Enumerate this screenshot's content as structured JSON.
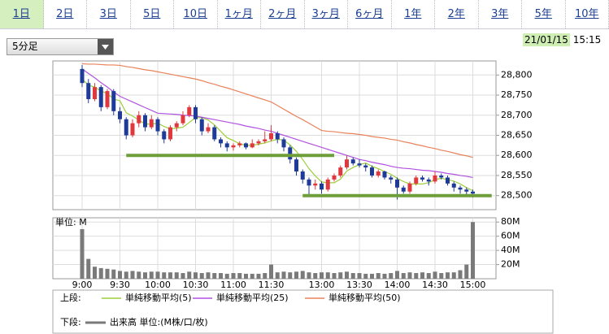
{
  "tabs": [
    "1日",
    "2日",
    "3日",
    "5日",
    "10日",
    "1ヶ月",
    "2ヶ月",
    "3ヶ月",
    "6ヶ月",
    "1年",
    "2年",
    "3年",
    "5年",
    "10年"
  ],
  "selected_tab": 0,
  "interval_select": "5分足",
  "date": "21/01/15",
  "time": "15:15",
  "legend": {
    "upper_label": "上段:",
    "lower_label": "下段:"
  },
  "chart_data": [
    {
      "type": "candlestick",
      "up_color": "#e0383e",
      "down_color": "#1f3b9a",
      "categories": [
        "9:00",
        null,
        null,
        null,
        null,
        null,
        "9:30",
        null,
        null,
        null,
        null,
        null,
        "10:00",
        null,
        null,
        null,
        null,
        null,
        "10:30",
        null,
        null,
        null,
        null,
        null,
        "11:00",
        null,
        null,
        null,
        null,
        null,
        "11:30",
        null,
        null,
        null,
        null,
        null,
        null,
        null,
        "13:00",
        null,
        null,
        null,
        null,
        null,
        "13:30",
        null,
        null,
        null,
        null,
        null,
        "14:00",
        null,
        null,
        null,
        null,
        null,
        "14:30",
        null,
        null,
        null,
        null,
        null,
        "15:00"
      ],
      "candles": [
        [
          28815,
          28825,
          28770,
          28780
        ],
        [
          28780,
          28790,
          28730,
          28740
        ],
        [
          28740,
          28780,
          28735,
          28770
        ],
        [
          28770,
          28775,
          28710,
          28720
        ],
        [
          28720,
          28765,
          28715,
          28760
        ],
        [
          28760,
          28765,
          28700,
          28710
        ],
        [
          28710,
          28720,
          28680,
          28690
        ],
        [
          28690,
          28695,
          28640,
          28650
        ],
        [
          28650,
          28690,
          28645,
          28680
        ],
        [
          28680,
          28710,
          28670,
          28700
        ],
        [
          28700,
          28705,
          28660,
          28670
        ],
        [
          28670,
          28700,
          28665,
          28690
        ],
        [
          28690,
          28695,
          28650,
          28660
        ],
        [
          28660,
          28665,
          28630,
          28640
        ],
        [
          28640,
          28675,
          28635,
          28670
        ],
        [
          28670,
          28685,
          28660,
          28680
        ],
        [
          28680,
          28710,
          28675,
          28700
        ],
        [
          28700,
          28725,
          28695,
          28720
        ],
        [
          28720,
          28725,
          28680,
          28690
        ],
        [
          28690,
          28695,
          28650,
          28660
        ],
        [
          28660,
          28680,
          28655,
          28670
        ],
        [
          28670,
          28675,
          28635,
          28640
        ],
        [
          28640,
          28645,
          28620,
          28630
        ],
        [
          28630,
          28635,
          28610,
          28620
        ],
        [
          28620,
          28630,
          28612,
          28625
        ],
        [
          28625,
          28635,
          28620,
          28630
        ],
        [
          28630,
          28632,
          28615,
          28620
        ],
        [
          28620,
          28640,
          28618,
          28630
        ],
        [
          28630,
          28640,
          28625,
          28635
        ],
        [
          28635,
          28660,
          28630,
          28640
        ],
        [
          28640,
          28675,
          28635,
          28655
        ],
        [
          28655,
          28660,
          28630,
          28640
        ],
        [
          28640,
          28645,
          28610,
          28620
        ],
        [
          28620,
          28625,
          28580,
          28590
        ],
        [
          28590,
          28595,
          28550,
          28560
        ],
        [
          28560,
          28565,
          28530,
          28540
        ],
        [
          28540,
          28545,
          28500,
          28525
        ],
        [
          28525,
          28540,
          28515,
          28530
        ],
        [
          28530,
          28535,
          28505,
          28515
        ],
        [
          28515,
          28545,
          28510,
          28540
        ],
        [
          28540,
          28555,
          28535,
          28550
        ],
        [
          28550,
          28575,
          28545,
          28570
        ],
        [
          28570,
          28600,
          28565,
          28590
        ],
        [
          28590,
          28595,
          28575,
          28580
        ],
        [
          28580,
          28590,
          28570,
          28575
        ],
        [
          28575,
          28580,
          28560,
          28570
        ],
        [
          28570,
          28575,
          28545,
          28550
        ],
        [
          28550,
          28565,
          28545,
          28560
        ],
        [
          28560,
          28562,
          28540,
          28545
        ],
        [
          28545,
          28550,
          28530,
          28540
        ],
        [
          28540,
          28545,
          28490,
          28520
        ],
        [
          28520,
          28525,
          28505,
          28510
        ],
        [
          28510,
          28535,
          28505,
          28530
        ],
        [
          28530,
          28550,
          28525,
          28545
        ],
        [
          28545,
          28550,
          28535,
          28540
        ],
        [
          28540,
          28545,
          28525,
          28535
        ],
        [
          28535,
          28560,
          28530,
          28550
        ],
        [
          28550,
          28555,
          28540,
          28545
        ],
        [
          28545,
          28550,
          28525,
          28530
        ],
        [
          28530,
          28535,
          28510,
          28520
        ],
        [
          28520,
          28525,
          28505,
          28515
        ],
        [
          28515,
          28520,
          28500,
          28510
        ],
        [
          28510,
          28515,
          28495,
          28505
        ]
      ],
      "series": [
        {
          "name": "単純移動平均(5)",
          "color": "#9ccf3a",
          "values": [
            28790,
            28775,
            28770,
            28760,
            28754,
            28740,
            28736,
            28706,
            28698,
            28688,
            28678,
            28678,
            28680,
            28672,
            28666,
            28668,
            28670,
            28682,
            28694,
            28694,
            28688,
            28676,
            28660,
            28644,
            28637,
            28629,
            28625,
            28625,
            28628,
            28631,
            28636,
            28640,
            28638,
            28626,
            28610,
            28590,
            28567,
            28549,
            28534,
            28532,
            28532,
            28541,
            28561,
            28570,
            28577,
            28581,
            28573,
            28567,
            28560,
            28553,
            28543,
            28535,
            28529,
            28529,
            28529,
            28532,
            28540,
            28543,
            28540,
            28536,
            28529,
            28520,
            28512
          ]
        },
        {
          "name": "単純移動平均(25)",
          "color": "#b152e0",
          "values": [
            28815,
            28804,
            28793,
            28781,
            28770,
            28758,
            28747,
            28740,
            28733,
            28726,
            28719,
            28712,
            28705,
            28704,
            28703,
            28702,
            28700,
            28699,
            28698,
            28695,
            28692,
            28689,
            28686,
            28683,
            28680,
            28677,
            28673,
            28670,
            28667,
            28663,
            28660,
            28655,
            28650,
            28645,
            28640,
            28635,
            28630,
            28625,
            28620,
            28615,
            28610,
            28605,
            28600,
            28595,
            28590,
            28587,
            28583,
            28580,
            28577,
            28573,
            28570,
            28568,
            28567,
            28565,
            28563,
            28562,
            28560,
            28558,
            28555,
            28553,
            28550,
            28548,
            28545
          ]
        },
        {
          "name": "単純移動平均(50)",
          "color": "#e8825a",
          "values": [
            28828,
            28827,
            28827,
            28826,
            28825,
            28825,
            28824,
            28821,
            28819,
            28816,
            28813,
            28811,
            28808,
            28805,
            28802,
            28799,
            28796,
            28793,
            28790,
            28786,
            28781,
            28777,
            28772,
            28768,
            28763,
            28758,
            28753,
            28748,
            28743,
            28738,
            28733,
            28724,
            28715,
            28706,
            28697,
            28689,
            28680,
            28671,
            28662,
            28660,
            28659,
            28657,
            28655,
            28654,
            28652,
            28650,
            28647,
            28645,
            28643,
            28640,
            28638,
            28634,
            28631,
            28627,
            28624,
            28620,
            28617,
            28613,
            28610,
            28606,
            28602,
            28599,
            28595
          ]
        }
      ],
      "support_lines": [
        {
          "value": 28600,
          "from": 7,
          "to": 40,
          "color": "#6e9e3a"
        },
        {
          "value": 28500,
          "from": 35,
          "to": 65,
          "color": "#6e9e3a"
        }
      ],
      "ylim": [
        28465,
        28835
      ],
      "yticks": [
        {
          "value": 28500,
          "label": "28,500"
        },
        {
          "value": 28550,
          "label": "28,550"
        },
        {
          "value": 28600,
          "label": "28,600"
        },
        {
          "value": 28650,
          "label": "28,650"
        },
        {
          "value": 28700,
          "label": "28,700"
        },
        {
          "value": 28750,
          "label": "28,750"
        },
        {
          "value": 28800,
          "label": "28,800"
        }
      ],
      "grid": true
    },
    {
      "type": "bar",
      "name": "出来高 単位:(M株/口/枚)",
      "ylabel": "単位: M",
      "color": "#7a7a7a",
      "values": [
        70,
        28,
        17,
        15,
        14,
        13,
        11,
        10,
        11,
        10,
        9,
        10,
        10,
        9,
        9,
        9,
        8,
        10,
        9,
        8,
        9,
        8,
        8,
        7,
        8,
        8,
        7,
        7,
        7,
        8,
        20,
        9,
        10,
        9,
        10,
        11,
        9,
        8,
        9,
        9,
        8,
        9,
        10,
        8,
        8,
        7,
        7,
        8,
        7,
        8,
        11,
        8,
        9,
        8,
        9,
        8,
        10,
        8,
        9,
        9,
        12,
        20,
        80
      ],
      "ylim": [
        0,
        86
      ],
      "yticks": [
        {
          "value": 20,
          "label": "20M"
        },
        {
          "value": 40,
          "label": "40M"
        },
        {
          "value": 60,
          "label": "60M"
        },
        {
          "value": 80,
          "label": "80M"
        }
      ],
      "grid": true
    }
  ]
}
